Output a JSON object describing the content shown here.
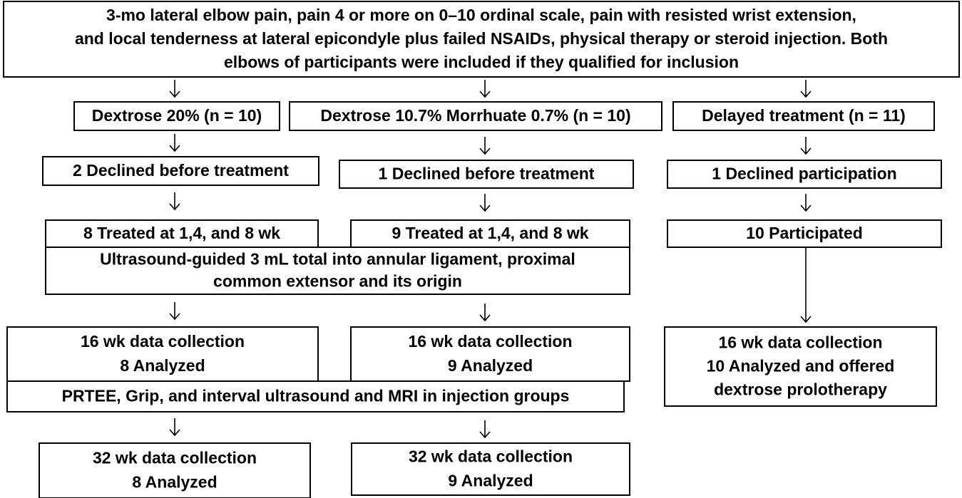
{
  "nodes": [
    {
      "lines": [
        "3-mo lateral elbow pain,  pain 4 or more on 0–10 ordinal scale, pain with resisted wrist extension,",
        "and local tenderness at lateral epicondyle plus failed NSAIDs, physical therapy or steroid injection. Both",
        "elbows of participants were included if they qualified for inclusion"
      ]
    },
    {
      "lines": [
        "Dextrose 20% (n = 10)"
      ]
    },
    {
      "lines": [
        "Dextrose 10.7%  Morrhuate 0.7% (n = 10)"
      ]
    },
    {
      "lines": [
        "Delayed treatment  (n = 11)"
      ]
    },
    {
      "lines": [
        "2 Declined before treatment"
      ]
    },
    {
      "lines": [
        "1 Declined before treatment"
      ]
    },
    {
      "lines": [
        "1 Declined participation"
      ]
    },
    {
      "lines": [
        "8 Treated at 1,4, and 8 wk"
      ]
    },
    {
      "lines": [
        "9 Treated at 1,4, and 8 wk"
      ]
    },
    {
      "lines": [
        "Ultrasound-guided 3 mL total into annular ligament, proximal",
        "common extensor and its origin"
      ]
    },
    {
      "lines": [
        "10 Participated"
      ]
    },
    {
      "lines": [
        "16 wk data collection",
        "8 Analyzed"
      ]
    },
    {
      "lines": [
        "16 wk data collection",
        "9 Analyzed"
      ]
    },
    {
      "lines": [
        "PRTEE, Grip, and interval ultrasound and MRI in injection groups"
      ]
    },
    {
      "lines": [
        "16 wk data collection",
        "10 Analyzed and offered",
        "dextrose prolotherapy"
      ]
    },
    {
      "lines": [
        "32 wk data collection",
        "8 Analyzed"
      ]
    },
    {
      "lines": [
        "32 wk data collection",
        "9 Analyzed"
      ]
    }
  ]
}
